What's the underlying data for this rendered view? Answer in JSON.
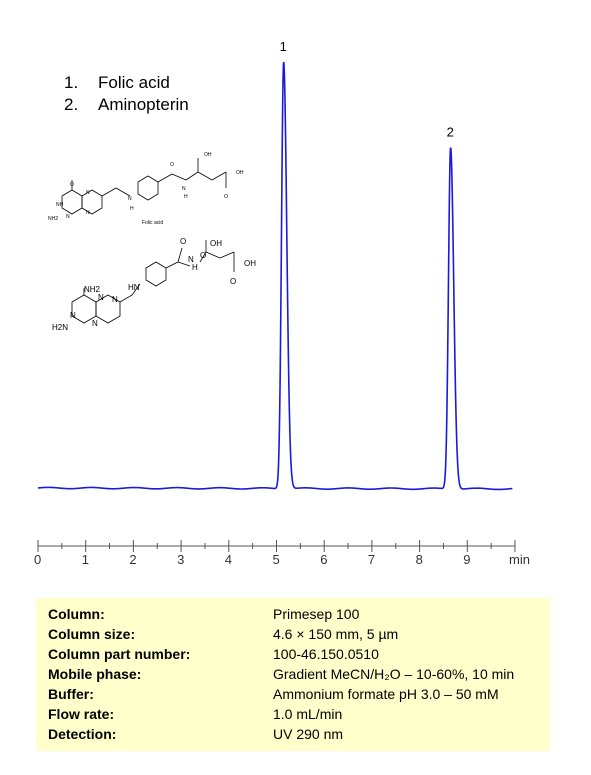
{
  "legend": [
    {
      "num": "1.",
      "name": "Folic acid"
    },
    {
      "num": "2.",
      "name": "Aminopterin"
    }
  ],
  "structures": {
    "folic_caption": "Folic acid",
    "folic_labels": [
      "O",
      "NH",
      "N",
      "N",
      "N",
      "NH2",
      "N",
      "H",
      "O",
      "OH",
      "OH",
      "O",
      "N",
      "H"
    ],
    "amino_labels": [
      "NH2",
      "N",
      "N",
      "N",
      "N",
      "H2N",
      "HN",
      "O",
      "N",
      "H",
      "OH",
      "O",
      "OH",
      "O"
    ]
  },
  "chart_data": {
    "type": "line",
    "xlabel": "min",
    "x_ticks": [
      0,
      1,
      2,
      3,
      4,
      5,
      6,
      7,
      8,
      9
    ],
    "xlim": [
      0,
      10
    ],
    "peaks": [
      {
        "label": "1",
        "rt": 5.15,
        "height": 1.0
      },
      {
        "label": "2",
        "rt": 8.65,
        "height": 0.8
      }
    ],
    "line_color": "#1a1adb"
  },
  "conditions": [
    {
      "key": "Column:",
      "value": "Primesep  100"
    },
    {
      "key": "Column size:",
      "value": "4.6 × 150 mm, 5 µm"
    },
    {
      "key": "Column part number:",
      "value": "100-46.150.0510"
    },
    {
      "key": "Mobile phase:",
      "value": "Gradient MeCN/H₂O – 10-60%, 10 min"
    },
    {
      "key": "Buffer:",
      "value": "Ammonium formate pH 3.0 – 50 mM"
    },
    {
      "key": "Flow rate:",
      "value": "1.0 mL/min"
    },
    {
      "key": "Detection:",
      "value": "UV 290  nm"
    }
  ]
}
